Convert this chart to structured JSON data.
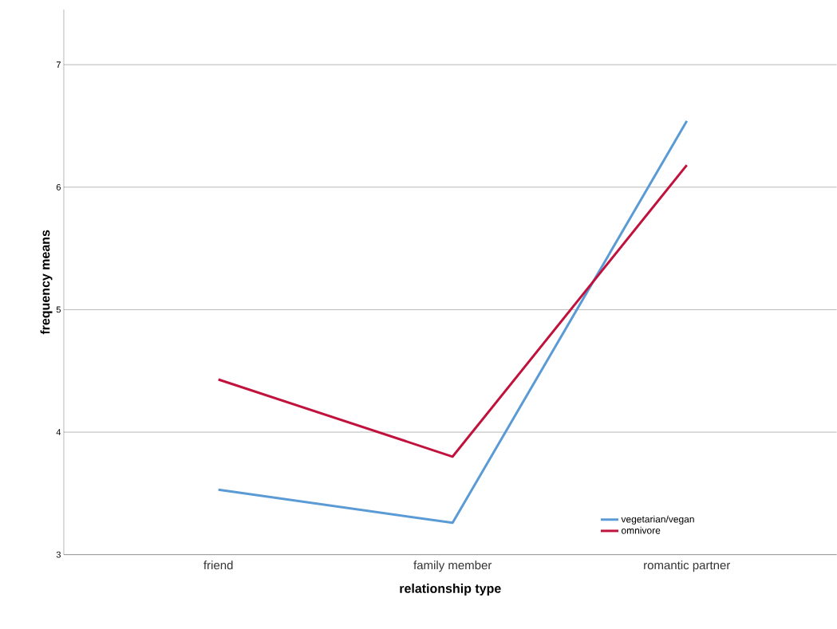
{
  "chart_data": {
    "type": "line",
    "xlabel": "relationship type",
    "ylabel": "frequency means",
    "categories": [
      "friend",
      "family member",
      "romantic partner"
    ],
    "series": [
      {
        "name": "vegetarian/vegan",
        "color": "#5b9bd5",
        "values": [
          3.53,
          3.26,
          6.54
        ]
      },
      {
        "name": "omnivore",
        "color": "#c0123c",
        "values": [
          4.43,
          3.8,
          6.18
        ]
      }
    ],
    "ylim": [
      3,
      7.45
    ],
    "yticks": [
      3,
      4,
      5,
      6,
      7
    ],
    "grid": "y",
    "legend": "bottom right",
    "marker": "none",
    "line_style": "solid"
  }
}
